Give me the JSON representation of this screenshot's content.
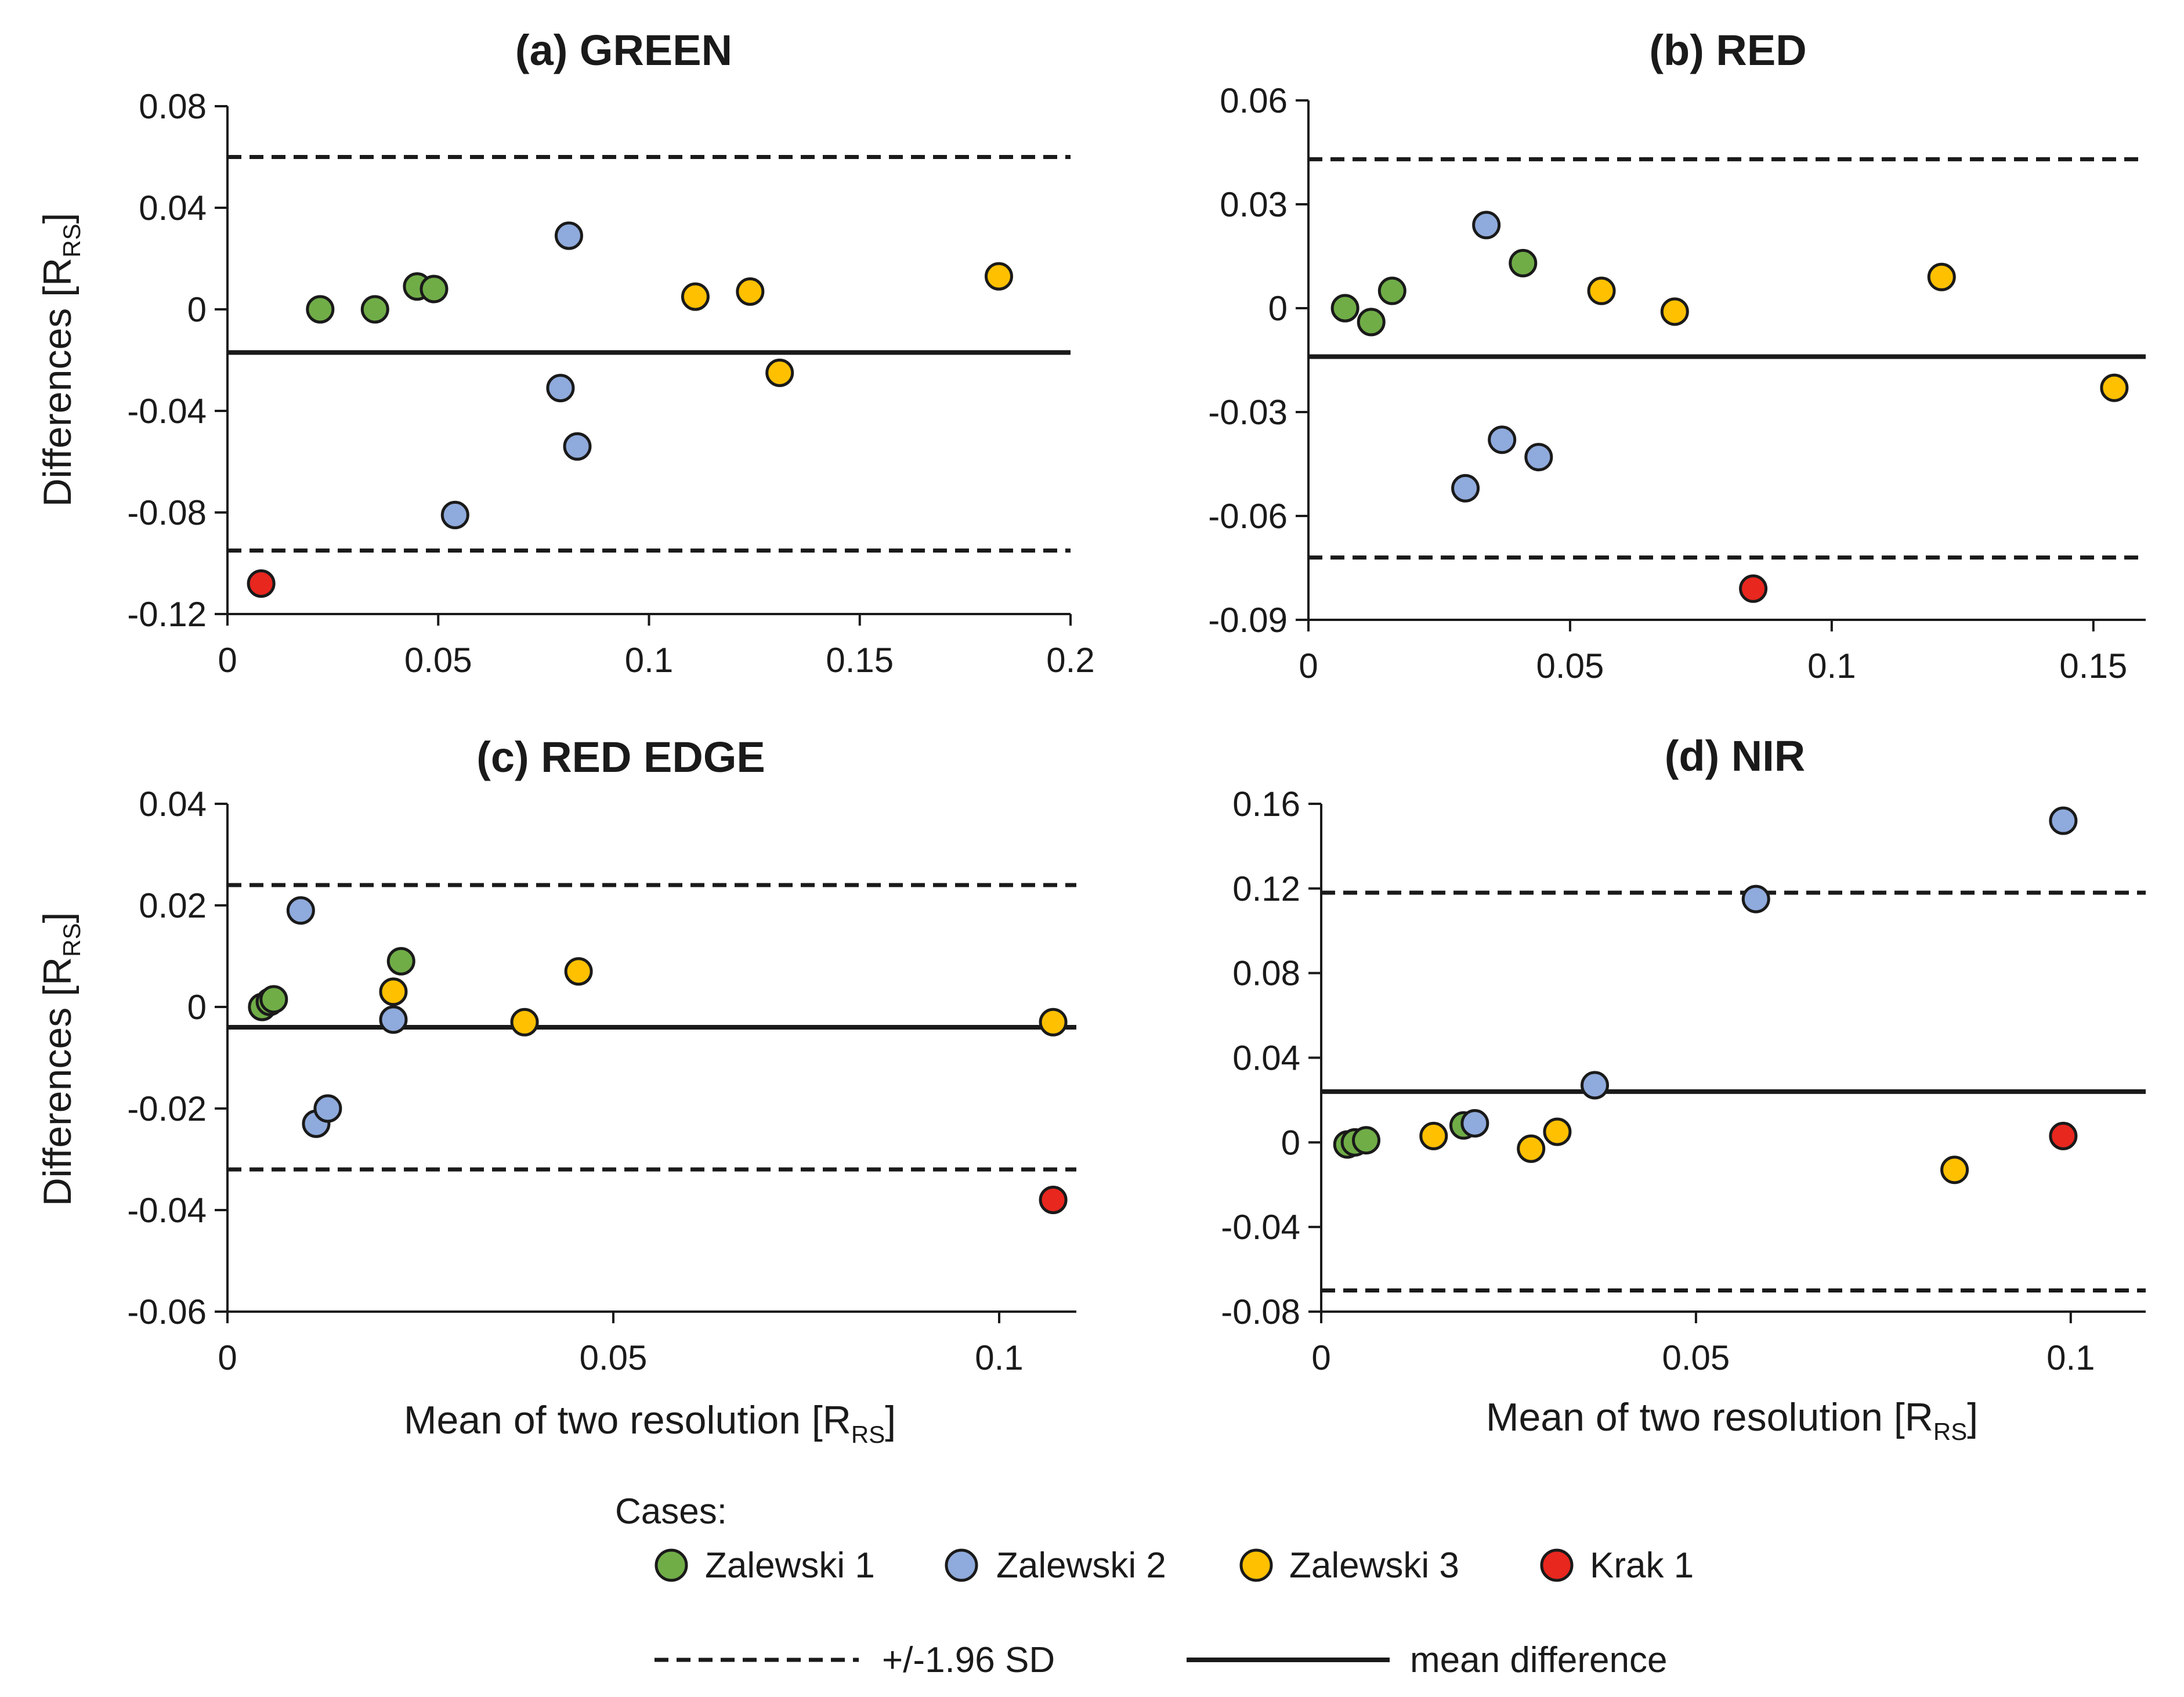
{
  "legend": {
    "title": "Cases:",
    "cases": [
      {
        "name": "Zalewski 1",
        "color": "#70AD47"
      },
      {
        "name": "Zalewski 2",
        "color": "#8FAADC"
      },
      {
        "name": "Zalewski 3",
        "color": "#FFC000"
      },
      {
        "name": "Krak 1",
        "color": "#E8271F"
      }
    ],
    "sd_label": "+/-1.96 SD",
    "mean_label": "mean difference"
  },
  "chart_data": [
    {
      "type": "scatter",
      "title": "(a) GREEN",
      "xlabel": "",
      "ylabel": "Differences [R",
      "ylabel_sub": "RS",
      "xlim": [
        0,
        0.2
      ],
      "ylim": [
        -0.12,
        0.08
      ],
      "xticks": [
        0,
        0.05,
        0.1,
        0.15,
        0.2
      ],
      "xtick_labels": [
        "0",
        "0.05",
        "0.1",
        "0.15",
        "0.2"
      ],
      "yticks": [
        -0.12,
        -0.08,
        -0.04,
        0,
        0.04,
        0.08
      ],
      "ytick_labels": [
        "-0.12",
        "-0.08",
        "-0.04",
        "0",
        "0.04",
        "0.08"
      ],
      "mean_difference": -0.017,
      "upper_limit": 0.06,
      "lower_limit": -0.095,
      "series": [
        {
          "name": "Zalewski 1",
          "color": "#70AD47",
          "points": [
            [
              0.022,
              0.0
            ],
            [
              0.035,
              0.0
            ],
            [
              0.045,
              0.009
            ],
            [
              0.049,
              0.008
            ]
          ]
        },
        {
          "name": "Zalewski 2",
          "color": "#8FAADC",
          "points": [
            [
              0.081,
              0.029
            ],
            [
              0.079,
              -0.031
            ],
            [
              0.083,
              -0.054
            ],
            [
              0.054,
              -0.081
            ]
          ]
        },
        {
          "name": "Zalewski 3",
          "color": "#FFC000",
          "points": [
            [
              0.111,
              0.005
            ],
            [
              0.124,
              0.007
            ],
            [
              0.131,
              -0.025
            ],
            [
              0.183,
              0.013
            ]
          ]
        },
        {
          "name": "Krak 1",
          "color": "#E8271F",
          "points": [
            [
              0.008,
              -0.108
            ]
          ]
        }
      ]
    },
    {
      "type": "scatter",
      "title": "(b) RED",
      "xlabel": "",
      "ylabel": "",
      "ylabel_sub": "",
      "xlim": [
        0,
        0.16
      ],
      "ylim": [
        -0.09,
        0.06
      ],
      "xticks": [
        0,
        0.05,
        0.1,
        0.15
      ],
      "xtick_labels": [
        "0",
        "0.05",
        "0.1",
        "0.15"
      ],
      "yticks": [
        -0.09,
        -0.06,
        -0.03,
        0,
        0.03,
        0.06
      ],
      "ytick_labels": [
        "-0.09",
        "-0.06",
        "-0.03",
        "0",
        "0.03",
        "0.06"
      ],
      "mean_difference": -0.014,
      "upper_limit": 0.043,
      "lower_limit": -0.072,
      "series": [
        {
          "name": "Zalewski 1",
          "color": "#70AD47",
          "points": [
            [
              0.007,
              0.0
            ],
            [
              0.012,
              -0.004
            ],
            [
              0.016,
              0.005
            ],
            [
              0.041,
              0.013
            ]
          ]
        },
        {
          "name": "Zalewski 2",
          "color": "#8FAADC",
          "points": [
            [
              0.034,
              0.024
            ],
            [
              0.037,
              -0.038
            ],
            [
              0.03,
              -0.052
            ],
            [
              0.044,
              -0.043
            ]
          ]
        },
        {
          "name": "Zalewski 3",
          "color": "#FFC000",
          "points": [
            [
              0.056,
              0.005
            ],
            [
              0.07,
              -0.001
            ],
            [
              0.121,
              0.009
            ],
            [
              0.154,
              -0.023
            ]
          ]
        },
        {
          "name": "Krak 1",
          "color": "#E8271F",
          "points": [
            [
              0.085,
              -0.081
            ]
          ]
        }
      ]
    },
    {
      "type": "scatter",
      "title": "(c) RED EDGE",
      "xlabel": "Mean of two resolution [R",
      "xlabel_sub": "RS",
      "ylabel": "Differences [R",
      "ylabel_sub": "RS",
      "xlim": [
        0,
        0.11
      ],
      "ylim": [
        -0.06,
        0.04
      ],
      "xticks": [
        0,
        0.05,
        0.1
      ],
      "xtick_labels": [
        "0",
        "0.05",
        "0.1"
      ],
      "yticks": [
        -0.06,
        -0.04,
        -0.02,
        0,
        0.02,
        0.04
      ],
      "ytick_labels": [
        "-0.06",
        "-0.04",
        "-0.02",
        "0",
        "0.02",
        "0.04"
      ],
      "mean_difference": -0.004,
      "upper_limit": 0.024,
      "lower_limit": -0.032,
      "series": [
        {
          "name": "Zalewski 1",
          "color": "#70AD47",
          "points": [
            [
              0.0045,
              0.0
            ],
            [
              0.0055,
              0.001
            ],
            [
              0.006,
              0.0015
            ],
            [
              0.0225,
              0.009
            ]
          ]
        },
        {
          "name": "Zalewski 2",
          "color": "#8FAADC",
          "points": [
            [
              0.0095,
              0.019
            ],
            [
              0.0115,
              -0.023
            ],
            [
              0.013,
              -0.02
            ],
            [
              0.0215,
              -0.0025
            ]
          ]
        },
        {
          "name": "Zalewski 3",
          "color": "#FFC000",
          "points": [
            [
              0.0215,
              0.003
            ],
            [
              0.0385,
              -0.003
            ],
            [
              0.0455,
              0.007
            ],
            [
              0.107,
              -0.003
            ]
          ]
        },
        {
          "name": "Krak 1",
          "color": "#E8271F",
          "points": [
            [
              0.107,
              -0.038
            ]
          ]
        }
      ]
    },
    {
      "type": "scatter",
      "title": "(d) NIR",
      "xlabel": "Mean of two resolution [R",
      "xlabel_sub": "RS",
      "ylabel": "",
      "ylabel_sub": "",
      "xlim": [
        0,
        0.11
      ],
      "ylim": [
        -0.08,
        0.16
      ],
      "xticks": [
        0,
        0.05,
        0.1
      ],
      "xtick_labels": [
        "0",
        "0.05",
        "0.1"
      ],
      "yticks": [
        -0.08,
        -0.04,
        0,
        0.04,
        0.08,
        0.12,
        0.16
      ],
      "ytick_labels": [
        "-0.08",
        "-0.04",
        "0",
        "0.04",
        "0.08",
        "0.12",
        "0.16"
      ],
      "mean_difference": 0.024,
      "upper_limit": 0.118,
      "lower_limit": -0.07,
      "series": [
        {
          "name": "Zalewski 1",
          "color": "#70AD47",
          "points": [
            [
              0.0035,
              -0.001
            ],
            [
              0.0045,
              0.0
            ],
            [
              0.006,
              0.001
            ],
            [
              0.019,
              0.008
            ]
          ]
        },
        {
          "name": "Zalewski 2",
          "color": "#8FAADC",
          "points": [
            [
              0.0205,
              0.009
            ],
            [
              0.0365,
              0.027
            ],
            [
              0.058,
              0.115
            ],
            [
              0.099,
              0.152
            ]
          ]
        },
        {
          "name": "Zalewski 3",
          "color": "#FFC000",
          "points": [
            [
              0.015,
              0.003
            ],
            [
              0.028,
              -0.003
            ],
            [
              0.0315,
              0.005
            ],
            [
              0.0845,
              -0.013
            ]
          ]
        },
        {
          "name": "Krak 1",
          "color": "#E8271F",
          "points": [
            [
              0.099,
              0.003
            ]
          ]
        }
      ]
    }
  ]
}
